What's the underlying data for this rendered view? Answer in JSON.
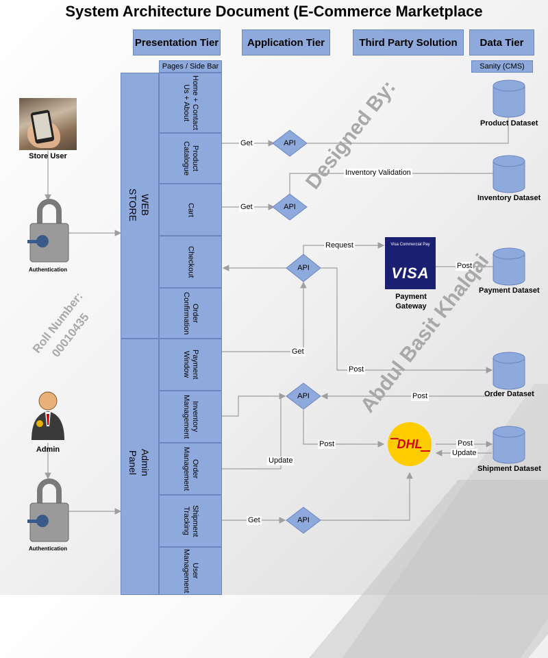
{
  "title": "System Architecture Document (E-Commerce Marketplace",
  "tiers": {
    "presentation": "Presentation Tier",
    "application": "Application Tier",
    "third_party": "Third Party Solution",
    "data": "Data Tier"
  },
  "sublabels": {
    "pages": "Pages / Side Bar",
    "cms": "Sanity (CMS)"
  },
  "sections": {
    "web_store": "WEB\nSTORE",
    "admin_panel": "Admin\nPanel"
  },
  "pages": [
    "Home + Contact\nUs + About",
    "Product\nCatalogue",
    "Cart",
    "Checkout",
    "Order\nConfirmation",
    "Payment\nWindow",
    "Inventory\nManagement",
    "Order\nManagement",
    "Shipment\nTracking",
    "User\nManagement"
  ],
  "actors": {
    "store_user": "Store User",
    "admin": "Admin",
    "auth_user": "Authentication",
    "auth_admin": "Authentication"
  },
  "api_label": "API",
  "edges": {
    "get1": "Get",
    "get2": "Get",
    "inventory_validation": "Inventory Validation",
    "request": "Request",
    "post_payment": "Post",
    "get_payment": "Get",
    "post_order": "Post",
    "post_inventory": "Post",
    "post_dhl": "Post",
    "post_shipment": "Post",
    "update_shipment": "Update",
    "update_order": "Update",
    "get_tracking": "Get"
  },
  "datasets": {
    "product": "Product Dataset",
    "inventory": "Inventory Dataset",
    "payment": "Payment Dataset",
    "order": "Order Dataset",
    "shipment": "Shipment Dataset"
  },
  "gateway": {
    "visa_small": "Visa Commercial Pay",
    "visa_big": "VISA",
    "label": "Payment\nGateway",
    "dhl": "DHL"
  },
  "watermarks": {
    "designed_by": "Designed By:",
    "author": "Abdul Basit Khalqai",
    "roll_label": "Roll Number:",
    "roll_value": "00010435"
  },
  "colors": {
    "box": "#8ea9db",
    "box_border": "#6b87c0",
    "line": "#9e9e9e",
    "visa": "#1a1f71",
    "dhl_yellow": "#ffcc00",
    "dhl_red": "#d40511"
  }
}
